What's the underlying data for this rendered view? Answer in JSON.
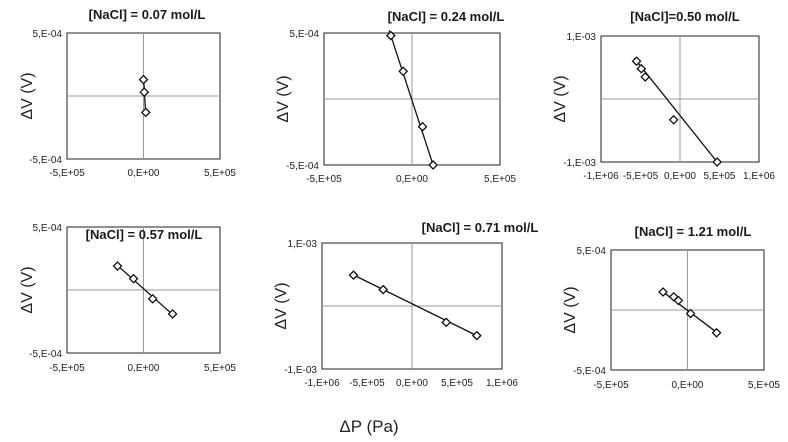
{
  "figure": {
    "xlabel": "ΔP (Pa)"
  },
  "chart_data": [
    {
      "type": "scatter",
      "title": "[NaCl] = 0.07 mol/L",
      "ylabel": "ΔV (V)",
      "xlim": [
        -500000,
        500000
      ],
      "ylim": [
        -0.0005,
        0.0005
      ],
      "xticks": [
        "-5,E+05",
        "0,E+00",
        "5,E+05"
      ],
      "yticks": [
        "5,E-04",
        "-5,E-04"
      ],
      "points": [
        [
          0,
          0.00013
        ],
        [
          5000,
          3e-05
        ],
        [
          15000,
          -0.00013
        ]
      ],
      "fit": [
        [
          0,
          0.00016
        ],
        [
          15000,
          -0.00016
        ]
      ]
    },
    {
      "type": "scatter",
      "title": "[NaCl] = 0.24 mol/L",
      "ylabel": "ΔV (V)",
      "xlim": [
        -500000,
        500000
      ],
      "ylim": [
        -0.0005,
        0.0005
      ],
      "xticks": [
        "-5,E+05",
        "0,E+00",
        "5,E+05"
      ],
      "yticks": [
        "5,E-04",
        "-5,E-04"
      ],
      "points": [
        [
          -120000,
          0.00048
        ],
        [
          -50000,
          0.00021
        ],
        [
          60000,
          -0.00021
        ],
        [
          120000,
          -0.0005
        ]
      ],
      "fit": [
        [
          -130000,
          0.00052
        ],
        [
          125000,
          -0.00052
        ]
      ]
    },
    {
      "type": "scatter",
      "title": "[NaCl]=0.50 mol/L",
      "ylabel": "ΔV (V)",
      "xlim": [
        -1000000,
        1000000
      ],
      "ylim": [
        -0.001,
        0.001
      ],
      "xticks": [
        "-1,E+06",
        "-5,E+05",
        "0,E+00",
        "5,E+05",
        "1,E+06"
      ],
      "yticks": [
        "1,E-03",
        "-1,E-03"
      ],
      "points": [
        [
          -550000,
          0.0006
        ],
        [
          -490000,
          0.00048
        ],
        [
          -440000,
          0.00035
        ],
        [
          -80000,
          -0.00033
        ],
        [
          470000,
          -0.001
        ]
      ],
      "fit": [
        [
          -580000,
          0.00065
        ],
        [
          470000,
          -0.001
        ]
      ]
    },
    {
      "type": "scatter",
      "title": "[NaCl] = 0.57 mol/L",
      "ylabel": "ΔV (V)",
      "xlim": [
        -500000,
        500000
      ],
      "ylim": [
        -0.0005,
        0.0005
      ],
      "xticks": [
        "-5,E+05",
        "0,E+00",
        "5,E+05"
      ],
      "yticks": [
        "5,E-04",
        "-5,E-04"
      ],
      "points": [
        [
          -170000,
          0.00019
        ],
        [
          -65000,
          9e-05
        ],
        [
          60000,
          -7e-05
        ],
        [
          190000,
          -0.00019
        ]
      ],
      "fit": [
        [
          -175000,
          0.0002
        ],
        [
          195000,
          -0.0002
        ]
      ]
    },
    {
      "type": "scatter",
      "title": "[NaCl] = 0.71 mol/L",
      "ylabel": "ΔV (V)",
      "xlim": [
        -1000000,
        1000000
      ],
      "ylim": [
        -0.001,
        0.001
      ],
      "xticks": [
        "-1,E+06",
        "-5,E+05",
        "0,E+00",
        "5,E+05",
        "1,E+06"
      ],
      "yticks": [
        "1,E-03",
        "-1,E-03"
      ],
      "points": [
        [
          -650000,
          0.00049
        ],
        [
          -320000,
          0.00026
        ],
        [
          380000,
          -0.00026
        ],
        [
          720000,
          -0.00047
        ]
      ],
      "fit": [
        [
          -660000,
          0.0005
        ],
        [
          720000,
          -0.00047
        ]
      ]
    },
    {
      "type": "scatter",
      "title": "[NaCl] = 1.21 mol/L",
      "ylabel": "ΔV (V)",
      "xlim": [
        -500000,
        500000
      ],
      "ylim": [
        -0.0005,
        0.0005
      ],
      "xticks": [
        "-5,E+05",
        "0,E+00",
        "5,E+05"
      ],
      "yticks": [
        "5,E-04",
        "-5,E-04"
      ],
      "points": [
        [
          -160000,
          0.00015
        ],
        [
          -90000,
          0.00011
        ],
        [
          -60000,
          8e-05
        ],
        [
          20000,
          -3e-05
        ],
        [
          190000,
          -0.00019
        ]
      ],
      "fit": [
        [
          -170000,
          0.00016
        ],
        [
          195000,
          -0.00019
        ]
      ]
    }
  ]
}
